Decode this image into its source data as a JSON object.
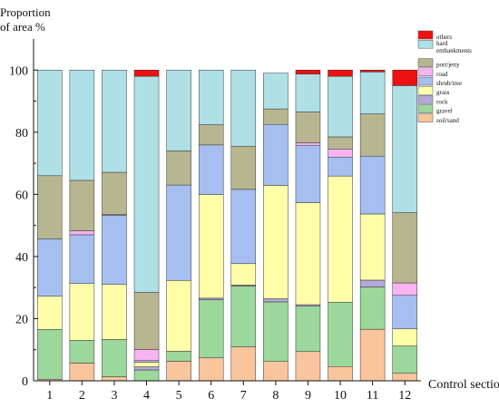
{
  "chart_data": {
    "type": "bar",
    "stacked": true,
    "ylabel_lines": [
      "Proportion",
      "of area %"
    ],
    "xlabel": "Control section",
    "categories": [
      "1",
      "2",
      "3",
      "4",
      "5",
      "6",
      "7",
      "8",
      "9",
      "10",
      "11",
      "12"
    ],
    "ylim": [
      0,
      110
    ],
    "yticks": [
      0,
      20,
      40,
      60,
      80,
      100
    ],
    "grid": false,
    "legend_position": "top-right",
    "series": [
      {
        "name": "soil/sand",
        "color": "#F9C59C",
        "values": [
          0.5,
          5.7,
          1.3,
          0,
          6.3,
          7.4,
          10.9,
          6.2,
          9.4,
          4.6,
          16.6,
          2.4
        ]
      },
      {
        "name": "gravel",
        "color": "#9CD79C",
        "values": [
          16.0,
          7.3,
          12.0,
          3.5,
          3.2,
          18.7,
          19.6,
          19.2,
          14.6,
          20.7,
          13.6,
          8.8
        ]
      },
      {
        "name": "rock",
        "color": "#B4A8D8",
        "values": [
          0,
          0,
          0,
          1.0,
          0,
          0.5,
          0.3,
          1.0,
          0.5,
          0,
          2.2,
          0
        ]
      },
      {
        "name": "grass",
        "color": "#FFFFAA",
        "values": [
          10.7,
          18.3,
          17.7,
          1.5,
          22.8,
          33.3,
          6.9,
          36.5,
          32.8,
          40.6,
          21.3,
          5.5
        ]
      },
      {
        "name": "shrub/tree",
        "color": "#A7BFF0",
        "values": [
          18.5,
          15.7,
          22.3,
          0.5,
          30.7,
          16.0,
          23.9,
          19.6,
          18.5,
          6.1,
          18.6,
          10.8
        ]
      },
      {
        "name": "road",
        "color": "#F7B4F0",
        "values": [
          0,
          1.3,
          0.2,
          3.6,
          0,
          0,
          0,
          0,
          0.8,
          2.6,
          0,
          4.0
        ]
      },
      {
        "name": "port/jetty",
        "color": "#B7B690",
        "values": [
          20.3,
          16.2,
          13.6,
          18.4,
          11.0,
          6.5,
          13.9,
          5.0,
          9.9,
          3.9,
          13.6,
          22.7
        ]
      },
      {
        "name": "hard embankments",
        "color": "#AEE0E6",
        "values": [
          34.0,
          35.5,
          32.9,
          69.5,
          26.0,
          17.6,
          24.5,
          11.5,
          12.2,
          19.5,
          13.5,
          40.8
        ]
      },
      {
        "name": "others",
        "color": "#EE1111",
        "values": [
          0,
          0,
          0,
          2.0,
          0,
          0,
          0,
          0,
          1.3,
          2.0,
          0.6,
          5.0
        ]
      }
    ]
  }
}
